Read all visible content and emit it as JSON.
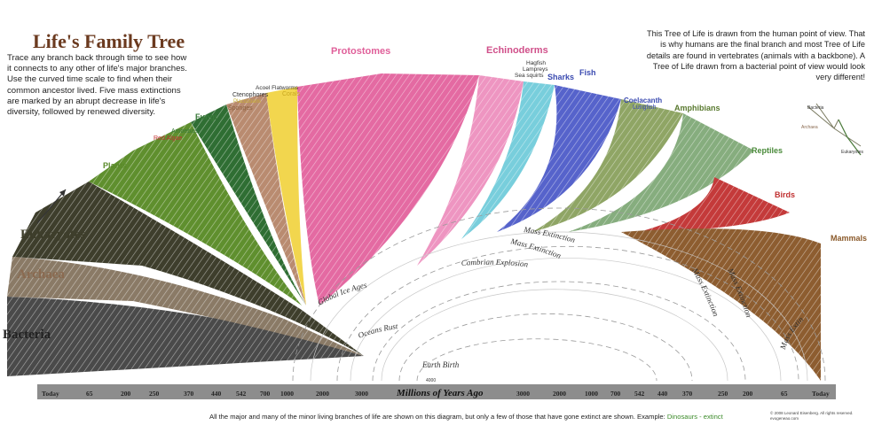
{
  "title": "Life's Family Tree",
  "intro": "Trace any branch back through time to see how it connects to any other of life's major branches. Use the curved time scale to find when their common ancestor lived. Five mass extinctions are marked by an abrupt decrease in life's diversity, followed by renewed diversity.",
  "note": "This Tree of Life is drawn from the human point of view. That is why humans are the final branch and most Tree of Life details are found in vertebrates (animals with a backbone). A Tree of Life drawn from a bacterial point of view would look very different!",
  "domains": {
    "bacteria": "Bacteria",
    "archaea": "Archaea",
    "eukaryotes": "Eukaryotes"
  },
  "groups": {
    "plants": "Plants",
    "red_algae": "Red Algae",
    "amoebas": "Amoebas",
    "fungi": "Fungi",
    "sponges": "Sponges",
    "ctenophores": "Ctenophores",
    "placozoa": "Placozoans",
    "acoel": "Acoel Flatworms",
    "corals": "Corals",
    "protostomes": "Protostomes",
    "echinoderms": "Echinoderms",
    "hagfish": "Hagfish",
    "lampreys": "Lampreys",
    "sea_squirts": "Sea squirts",
    "sharks": "Sharks",
    "fish": "Fish",
    "coelacanth": "Coelacanth",
    "lungfish": "Lungfish",
    "amphibians": "Amphibians",
    "reptiles": "Reptiles",
    "birds": "Birds",
    "mammals": "Mammals"
  },
  "events": {
    "mass_extinction": "Mass Extinction",
    "cambrian": "Cambrian Explosion",
    "ice_ages": "Global Ice Ages",
    "oceans_rust": "Oceans Rust",
    "earth_birth": "Earth Birth",
    "earth_birth_age": "4000"
  },
  "axis": {
    "title": "Millions of Years Ago",
    "left_ticks": [
      "Today",
      "65",
      "200",
      "250",
      "370",
      "440",
      "542",
      "700",
      "1000",
      "2000",
      "3000"
    ],
    "right_ticks": [
      "3000",
      "2000",
      "1000",
      "700",
      "542",
      "440",
      "370",
      "250",
      "200",
      "65",
      "Today"
    ]
  },
  "inset": {
    "bacteria": "Bacteria",
    "archaea": "Archaea",
    "eukaryotes": "Eukaryotes"
  },
  "footer": {
    "text": "All the major and many of the minor living branches of life are shown on this diagram, but only a few of those that have gone extinct are shown. Example:",
    "example": "Dinosaurs - extinct"
  },
  "credit": "© 2008 Leonard Eisenberg. All rights reserved. evogeneao.com",
  "colors": {
    "bacteria": "#444444",
    "archaea": "#8a7055",
    "eukaryotes": "#3d3d2a",
    "plants": "#5a8a2a",
    "fungi": "#3a7a3a",
    "sponges": "#b0856a",
    "corals": "#f3d650",
    "protostomes": "#e0609a",
    "echinoderms": "#ea8ab8",
    "chordates": "#70c8d8",
    "fish": "#5060c8",
    "amphibians": "#8aa060",
    "reptiles": "#80a878",
    "birds": "#c03030",
    "mammals": "#8b5a2b",
    "timeline": "#8a8a8a"
  }
}
